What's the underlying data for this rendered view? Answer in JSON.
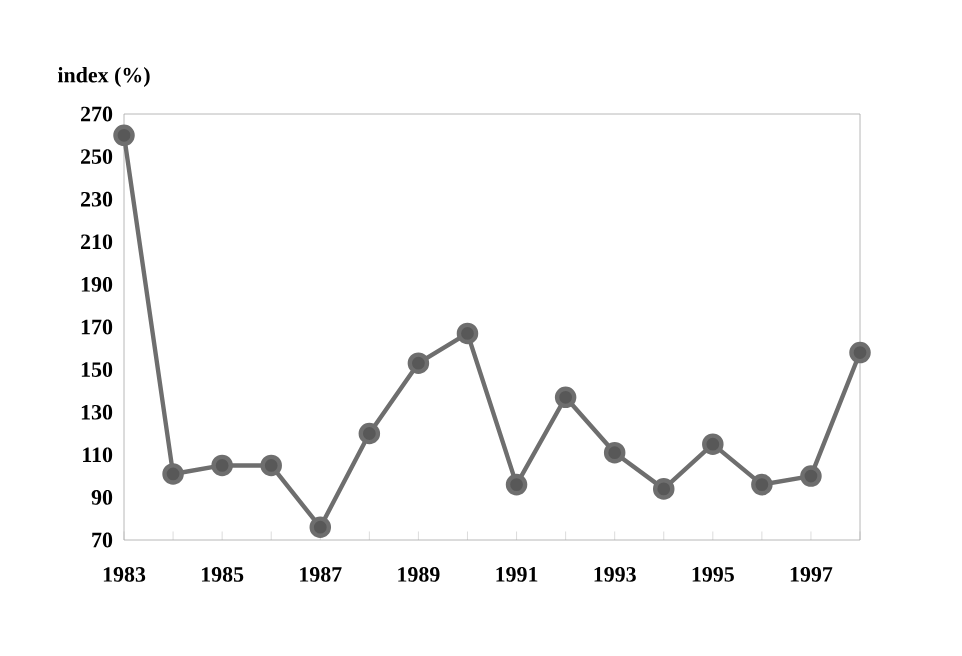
{
  "chart_data": {
    "type": "line",
    "ylabel": "index (%)",
    "x": [
      1983,
      1984,
      1985,
      1986,
      1987,
      1988,
      1989,
      1990,
      1991,
      1992,
      1993,
      1994,
      1995,
      1996,
      1997,
      1998
    ],
    "series": [
      {
        "color": "#6e6e6e",
        "values": [
          260,
          101,
          105,
          105,
          76,
          120,
          153,
          167,
          96,
          137,
          111,
          94,
          115,
          96,
          100,
          158
        ]
      }
    ],
    "xlim": [
      1983,
      1998
    ],
    "xticks": [
      1983,
      {
        "value": 1984,
        "label": null
      },
      1985,
      {
        "value": 1986,
        "label": null
      },
      1987,
      {
        "value": 1988,
        "label": null
      },
      1989,
      {
        "value": 1990,
        "label": null
      },
      1991,
      {
        "value": 1992,
        "label": null
      },
      1993,
      {
        "value": 1994,
        "label": null
      },
      1995,
      {
        "value": 1996,
        "label": null
      },
      1997,
      {
        "value": 1998,
        "label": null
      }
    ],
    "ylim": [
      70,
      270
    ],
    "yticks": [
      70,
      90,
      110,
      130,
      150,
      170,
      190,
      210,
      230,
      250,
      270
    ],
    "grid": false,
    "marker": "circle",
    "line_style": "solid"
  }
}
